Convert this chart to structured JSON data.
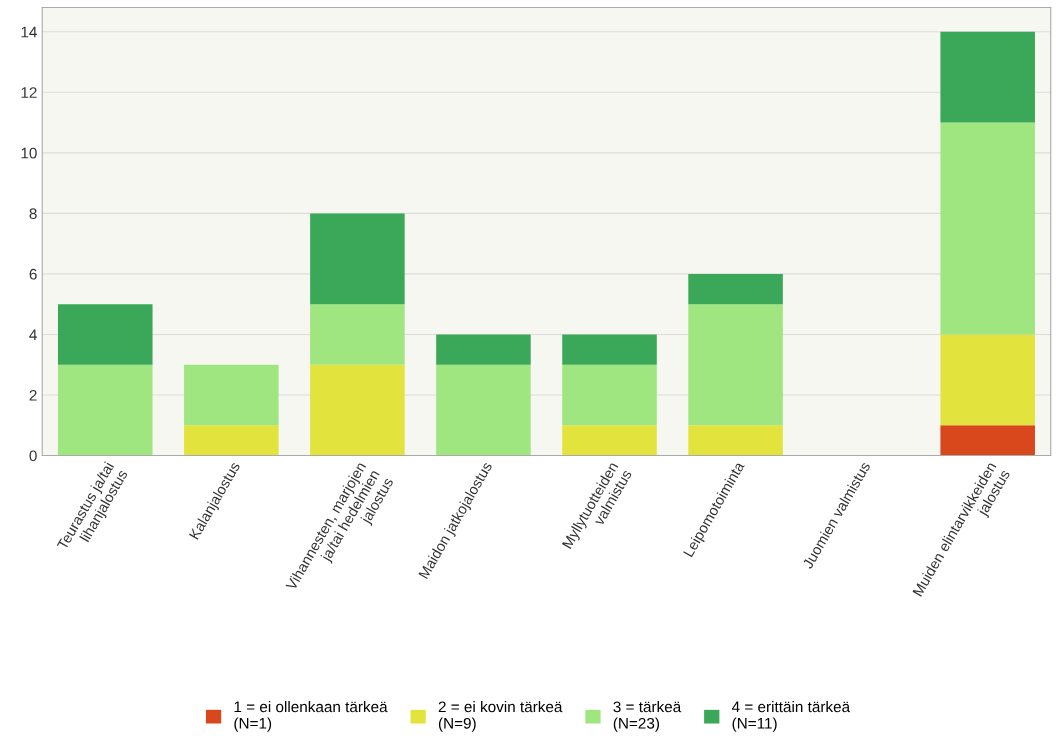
{
  "chart_data": {
    "type": "bar",
    "stacked": true,
    "categories": [
      "Teurastus ja/tai lihanjalostus",
      "Kalanjalostus",
      "Vihannesten, marjojen ja/tai hedelmien jalostus",
      "Maidon jatkojalostus",
      "Myllytuotteiden valmistus",
      "Leipomotoiminta",
      "Juomien valmistus",
      "Muiden elintarvikkeiden jalostus"
    ],
    "series": [
      {
        "name": "1 = ei ollenkaan tärkeä\n(N=1)",
        "color": "#d9471c",
        "values": [
          0,
          0,
          0,
          0,
          0,
          0,
          0,
          1
        ]
      },
      {
        "name": "2 = ei kovin tärkeä\n(N=9)",
        "color": "#e3e33e",
        "values": [
          0,
          1,
          3,
          0,
          1,
          1,
          0,
          3
        ]
      },
      {
        "name": "3 = tärkeä\n(N=23)",
        "color": "#a0e680",
        "values": [
          3,
          2,
          2,
          3,
          2,
          4,
          0,
          7
        ]
      },
      {
        "name": "4 = erittäin tärkeä\n(N=11)",
        "color": "#3aa858",
        "values": [
          2,
          0,
          3,
          1,
          1,
          1,
          0,
          3
        ]
      }
    ],
    "ylim": [
      0,
      14.8
    ],
    "yticks": [
      0,
      2,
      4,
      6,
      8,
      10,
      12,
      14
    ],
    "grid": "y",
    "legend": "bottom"
  }
}
